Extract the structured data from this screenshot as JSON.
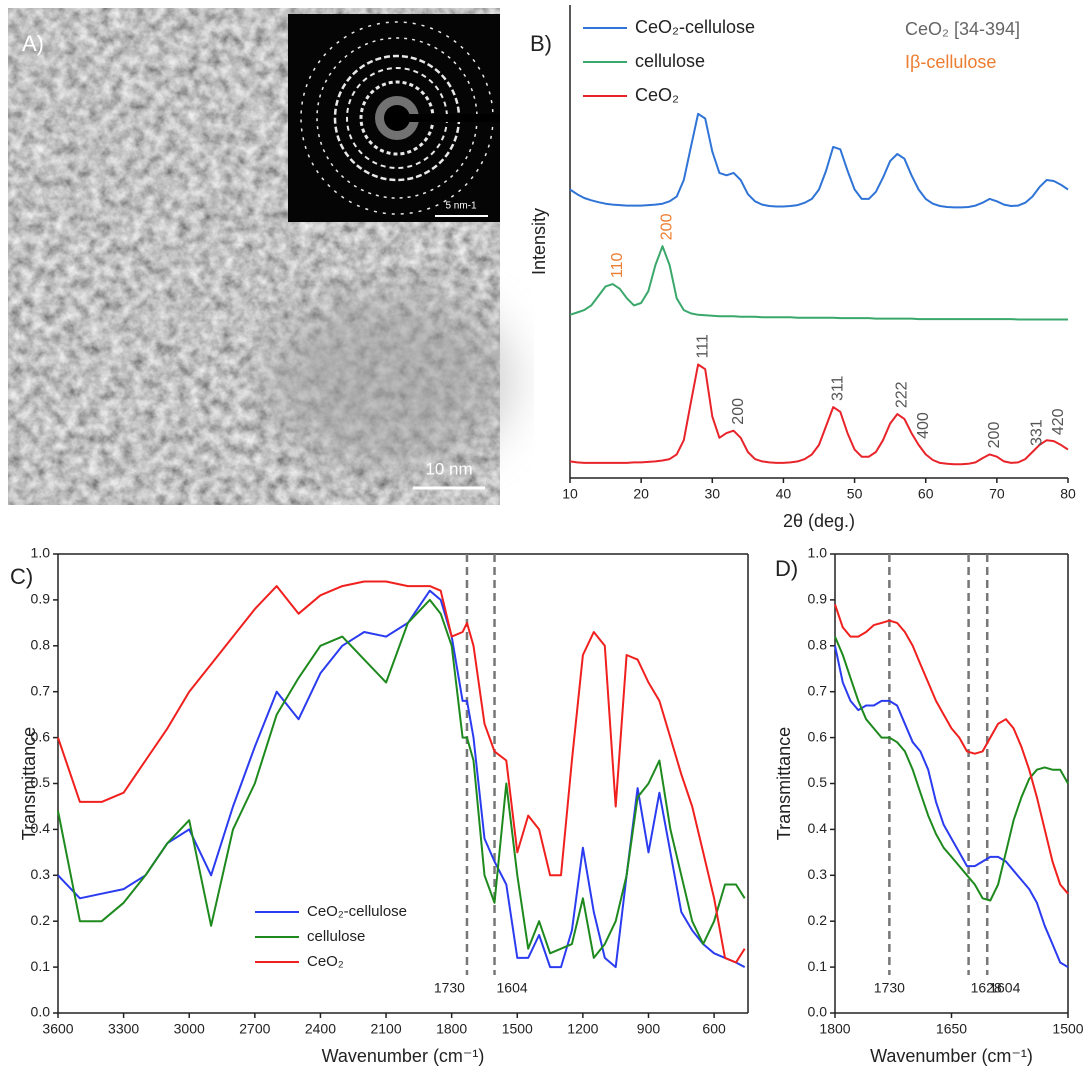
{
  "panel_a": {
    "label": "A)",
    "scale_bar": "10 nm",
    "inset_scale_bar": "5 nm-1"
  },
  "chart_data": [
    {
      "type": "line",
      "panel_label": "B)",
      "x_label": "2θ (deg.)",
      "y_label": "Intensity",
      "xlim": [
        10,
        80
      ],
      "xticks": [
        10,
        20,
        30,
        40,
        50,
        60,
        70,
        80
      ],
      "ylim": [
        0,
        10
      ],
      "legend": "upper left",
      "box": false,
      "annotations": [
        {
          "text": "CeO₂ [34-394]",
          "color": "#666666"
        },
        {
          "text": "Iβ-cellulose",
          "color": "#ed7d31"
        }
      ],
      "x": [
        10,
        11,
        12,
        13,
        14,
        15,
        16,
        17,
        18,
        19,
        20,
        21,
        22,
        23,
        24,
        25,
        26,
        27,
        28,
        29,
        30,
        31,
        32,
        33,
        34,
        35,
        36,
        37,
        38,
        39,
        40,
        41,
        42,
        43,
        44,
        45,
        46,
        47,
        48,
        49,
        50,
        51,
        52,
        53,
        54,
        55,
        56,
        57,
        58,
        59,
        60,
        61,
        62,
        63,
        64,
        65,
        66,
        67,
        68,
        69,
        70,
        71,
        72,
        73,
        74,
        75,
        76,
        77,
        78,
        79,
        80
      ],
      "series": [
        {
          "name": "CeO₂-cellulose",
          "color": "#2f74d6",
          "values": [
            6.1,
            6.0,
            5.92,
            5.87,
            5.83,
            5.8,
            5.78,
            5.77,
            5.76,
            5.76,
            5.76,
            5.77,
            5.78,
            5.8,
            5.85,
            5.95,
            6.3,
            7.0,
            7.7,
            7.6,
            6.9,
            6.45,
            6.4,
            6.45,
            6.3,
            6.0,
            5.85,
            5.78,
            5.75,
            5.74,
            5.74,
            5.75,
            5.77,
            5.82,
            5.9,
            6.1,
            6.5,
            7.0,
            6.95,
            6.5,
            6.1,
            5.9,
            5.9,
            6.05,
            6.35,
            6.7,
            6.85,
            6.75,
            6.4,
            6.1,
            5.9,
            5.8,
            5.75,
            5.73,
            5.72,
            5.72,
            5.73,
            5.76,
            5.82,
            5.9,
            5.85,
            5.78,
            5.75,
            5.76,
            5.82,
            5.95,
            6.15,
            6.3,
            6.28,
            6.2,
            6.1
          ]
        },
        {
          "name": "cellulose",
          "color": "#3aa86b",
          "peak_label_color": "#ed7d31",
          "values": [
            3.45,
            3.5,
            3.55,
            3.65,
            3.85,
            4.05,
            4.1,
            4.0,
            3.8,
            3.65,
            3.7,
            3.95,
            4.5,
            4.9,
            4.5,
            3.8,
            3.55,
            3.48,
            3.45,
            3.44,
            3.43,
            3.42,
            3.42,
            3.42,
            3.41,
            3.41,
            3.41,
            3.4,
            3.4,
            3.4,
            3.4,
            3.4,
            3.39,
            3.39,
            3.39,
            3.39,
            3.39,
            3.39,
            3.38,
            3.38,
            3.38,
            3.38,
            3.38,
            3.37,
            3.37,
            3.37,
            3.37,
            3.37,
            3.37,
            3.36,
            3.36,
            3.36,
            3.36,
            3.36,
            3.36,
            3.36,
            3.36,
            3.36,
            3.36,
            3.36,
            3.36,
            3.36,
            3.36,
            3.35,
            3.35,
            3.35,
            3.35,
            3.35,
            3.35,
            3.35,
            3.35
          ],
          "peak_labels": [
            {
              "label": "110",
              "x": 16
            },
            {
              "label": "200",
              "x": 23
            }
          ]
        },
        {
          "name": "CeO₂",
          "color": "#e8242a",
          "peak_label_color": "#555555",
          "values": [
            0.35,
            0.33,
            0.32,
            0.32,
            0.32,
            0.32,
            0.32,
            0.32,
            0.32,
            0.33,
            0.33,
            0.34,
            0.35,
            0.37,
            0.4,
            0.5,
            0.8,
            1.6,
            2.4,
            2.3,
            1.3,
            0.85,
            0.95,
            1.0,
            0.85,
            0.55,
            0.4,
            0.35,
            0.33,
            0.32,
            0.32,
            0.33,
            0.35,
            0.4,
            0.5,
            0.7,
            1.1,
            1.5,
            1.4,
            0.95,
            0.6,
            0.45,
            0.45,
            0.55,
            0.8,
            1.15,
            1.35,
            1.25,
            0.95,
            0.7,
            0.5,
            0.38,
            0.32,
            0.3,
            0.29,
            0.29,
            0.3,
            0.33,
            0.42,
            0.5,
            0.45,
            0.35,
            0.32,
            0.33,
            0.4,
            0.55,
            0.7,
            0.8,
            0.78,
            0.7,
            0.6
          ],
          "peak_labels": [
            {
              "label": "111",
              "x": 28
            },
            {
              "label": "200",
              "x": 33
            },
            {
              "label": "311",
              "x": 47
            },
            {
              "label": "222",
              "x": 56
            },
            {
              "label": "400",
              "x": 59
            },
            {
              "label": "200",
              "x": 69
            },
            {
              "label": "331",
              "x": 75
            },
            {
              "label": "420",
              "x": 78
            }
          ]
        }
      ]
    },
    {
      "type": "line",
      "panel_label": "C)",
      "x_label": "Wavenumber (cm⁻¹)",
      "y_label": "Transmittance",
      "xlim": [
        3600,
        445
      ],
      "xticks": [
        3600,
        3300,
        3000,
        2700,
        2400,
        2100,
        1800,
        1500,
        1200,
        900,
        600
      ],
      "ylim": [
        0,
        1
      ],
      "yticks": [
        {
          "value": 0,
          "label": "0.0"
        },
        0.1,
        0.2,
        0.3,
        0.4,
        0.5,
        0.6,
        0.7,
        0.8,
        0.9,
        {
          "value": 1,
          "label": "1.0"
        }
      ],
      "legend": "lower center",
      "box": true,
      "vlines": [
        1730,
        1604
      ],
      "x": [
        3600,
        3500,
        3400,
        3300,
        3200,
        3100,
        3000,
        2900,
        2800,
        2700,
        2600,
        2500,
        2400,
        2300,
        2200,
        2100,
        2000,
        1900,
        1850,
        1800,
        1750,
        1730,
        1700,
        1650,
        1604,
        1550,
        1500,
        1450,
        1400,
        1350,
        1300,
        1250,
        1200,
        1150,
        1100,
        1050,
        1000,
        950,
        900,
        850,
        800,
        750,
        700,
        650,
        600,
        550,
        500,
        460
      ],
      "series": [
        {
          "name": "CeO₂-cellulose",
          "color": "#2b3cf0",
          "values": [
            0.3,
            0.25,
            0.26,
            0.27,
            0.3,
            0.37,
            0.4,
            0.3,
            0.45,
            0.58,
            0.7,
            0.64,
            0.74,
            0.8,
            0.83,
            0.82,
            0.85,
            0.92,
            0.9,
            0.82,
            0.68,
            0.68,
            0.6,
            0.38,
            0.33,
            0.28,
            0.12,
            0.12,
            0.17,
            0.1,
            0.1,
            0.18,
            0.36,
            0.22,
            0.12,
            0.1,
            0.3,
            0.49,
            0.35,
            0.48,
            0.35,
            0.22,
            0.18,
            0.15,
            0.13,
            0.12,
            0.11,
            0.1
          ]
        },
        {
          "name": "cellulose",
          "color": "#1e8a1e",
          "values": [
            0.44,
            0.2,
            0.2,
            0.24,
            0.3,
            0.37,
            0.42,
            0.19,
            0.4,
            0.5,
            0.65,
            0.73,
            0.8,
            0.82,
            0.77,
            0.72,
            0.85,
            0.9,
            0.87,
            0.8,
            0.6,
            0.6,
            0.55,
            0.3,
            0.24,
            0.5,
            0.3,
            0.14,
            0.2,
            0.13,
            0.14,
            0.15,
            0.25,
            0.12,
            0.15,
            0.2,
            0.3,
            0.47,
            0.5,
            0.55,
            0.4,
            0.3,
            0.2,
            0.15,
            0.2,
            0.28,
            0.28,
            0.25
          ]
        },
        {
          "name": "CeO₂",
          "color": "#f0201e",
          "values": [
            0.6,
            0.46,
            0.46,
            0.48,
            0.55,
            0.62,
            0.7,
            0.76,
            0.82,
            0.88,
            0.93,
            0.87,
            0.91,
            0.93,
            0.94,
            0.94,
            0.93,
            0.93,
            0.92,
            0.82,
            0.83,
            0.85,
            0.8,
            0.63,
            0.57,
            0.55,
            0.35,
            0.43,
            0.4,
            0.3,
            0.3,
            0.55,
            0.78,
            0.83,
            0.8,
            0.45,
            0.78,
            0.77,
            0.72,
            0.68,
            0.6,
            0.52,
            0.45,
            0.35,
            0.25,
            0.12,
            0.11,
            0.14
          ]
        }
      ]
    },
    {
      "type": "line",
      "panel_label": "D)",
      "x_label": "Wavenumber (cm⁻¹)",
      "y_label": "Transmittance",
      "xlim": [
        1800,
        1500
      ],
      "xticks": [
        1800,
        1650,
        1500
      ],
      "ylim": [
        0,
        1
      ],
      "yticks": [
        {
          "value": 0,
          "label": "0.0"
        },
        0.1,
        0.2,
        0.3,
        0.4,
        0.5,
        0.6,
        0.7,
        0.8,
        0.9,
        {
          "value": 1,
          "label": "1.0"
        }
      ],
      "box": true,
      "vlines": [
        1730,
        1628,
        1604
      ],
      "x": [
        1800,
        1790,
        1780,
        1770,
        1760,
        1750,
        1740,
        1730,
        1720,
        1710,
        1700,
        1690,
        1680,
        1670,
        1660,
        1650,
        1640,
        1630,
        1620,
        1610,
        1600,
        1590,
        1580,
        1570,
        1560,
        1550,
        1540,
        1530,
        1520,
        1510,
        1500
      ],
      "series": [
        {
          "color": "#2b3cf0",
          "values": [
            0.8,
            0.72,
            0.68,
            0.66,
            0.67,
            0.67,
            0.68,
            0.68,
            0.67,
            0.63,
            0.59,
            0.57,
            0.53,
            0.46,
            0.41,
            0.38,
            0.35,
            0.32,
            0.32,
            0.33,
            0.34,
            0.34,
            0.33,
            0.31,
            0.29,
            0.27,
            0.24,
            0.19,
            0.15,
            0.11,
            0.1
          ]
        },
        {
          "color": "#1e8a1e",
          "values": [
            0.82,
            0.78,
            0.73,
            0.68,
            0.64,
            0.62,
            0.6,
            0.6,
            0.59,
            0.57,
            0.53,
            0.48,
            0.43,
            0.39,
            0.36,
            0.34,
            0.32,
            0.3,
            0.28,
            0.25,
            0.245,
            0.28,
            0.35,
            0.42,
            0.47,
            0.51,
            0.53,
            0.535,
            0.53,
            0.53,
            0.5
          ]
        },
        {
          "color": "#f0201e",
          "values": [
            0.89,
            0.84,
            0.82,
            0.82,
            0.83,
            0.845,
            0.85,
            0.855,
            0.85,
            0.83,
            0.8,
            0.76,
            0.72,
            0.68,
            0.65,
            0.62,
            0.6,
            0.57,
            0.565,
            0.57,
            0.6,
            0.63,
            0.64,
            0.62,
            0.58,
            0.53,
            0.47,
            0.4,
            0.33,
            0.28,
            0.26
          ]
        }
      ]
    }
  ]
}
